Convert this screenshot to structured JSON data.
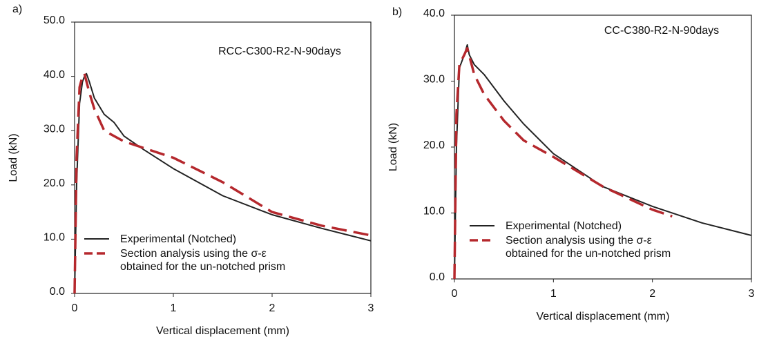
{
  "chart_data": [
    {
      "type": "line",
      "panel_label": "a)",
      "annotation": "RCC-C300-R2-N-90days",
      "xlabel": "Vertical displacement (mm)",
      "ylabel": "Load (kN)",
      "xlim": [
        0,
        3
      ],
      "xticks": [
        0,
        1,
        2,
        3
      ],
      "ylim": [
        0,
        50
      ],
      "yticks": [
        {
          "value": 0,
          "label": "0.0"
        },
        {
          "value": 10,
          "label": "10.0"
        },
        {
          "value": 20,
          "label": "20.0"
        },
        {
          "value": 30,
          "label": "30.0"
        },
        {
          "value": 40,
          "label": "40.0"
        },
        {
          "value": 50,
          "label": "50.0"
        }
      ],
      "series": [
        {
          "name": "Experimental (Notched)",
          "color": "#222222",
          "dash": false,
          "x": [
            0,
            0.02,
            0.05,
            0.08,
            0.1,
            0.12,
            0.15,
            0.2,
            0.3,
            0.4,
            0.5,
            0.7,
            1,
            1.5,
            2,
            2.5,
            3
          ],
          "values": [
            0,
            20,
            35,
            39,
            40,
            40.5,
            39,
            36,
            33,
            31.5,
            29,
            26.5,
            23,
            18,
            14.5,
            12,
            9.7
          ]
        },
        {
          "name": "Section analysis using the σ-ε obtained for the un-notched prism",
          "color": "#b5282d",
          "dash": true,
          "x": [
            0,
            0.02,
            0.05,
            0.08,
            0.1,
            0.15,
            0.2,
            0.3,
            0.5,
            1,
            1.5,
            2,
            2.5,
            3
          ],
          "values": [
            0,
            25,
            38,
            40,
            40.5,
            37,
            34,
            30,
            28,
            25,
            20.5,
            15,
            12.5,
            10.7
          ]
        }
      ]
    },
    {
      "type": "line",
      "panel_label": "b)",
      "annotation": "CC-C380-R2-N-90days",
      "xlabel": "Vertical displacement (mm)",
      "ylabel": "Load (kN)",
      "xlim": [
        0,
        3
      ],
      "xticks": [
        0,
        1,
        2,
        3
      ],
      "ylim": [
        0,
        40
      ],
      "yticks": [
        {
          "value": 0,
          "label": "0.0"
        },
        {
          "value": 10,
          "label": "10.0"
        },
        {
          "value": 20,
          "label": "20.0"
        },
        {
          "value": 30,
          "label": "30.0"
        },
        {
          "value": 40,
          "label": "40.0"
        }
      ],
      "series": [
        {
          "name": "Experimental (Notched)",
          "color": "#222222",
          "dash": false,
          "x": [
            0,
            0.02,
            0.05,
            0.1,
            0.13,
            0.15,
            0.2,
            0.3,
            0.5,
            0.7,
            1,
            1.5,
            2,
            2.5,
            3
          ],
          "values": [
            0,
            20,
            32,
            34,
            35.5,
            34,
            32.5,
            31,
            27,
            23.5,
            19,
            14,
            11,
            8.5,
            6.6
          ]
        },
        {
          "name": "Section analysis using the σ-ε obtained for the un-notched prism",
          "color": "#b5282d",
          "dash": true,
          "x": [
            0,
            0.02,
            0.05,
            0.1,
            0.13,
            0.2,
            0.3,
            0.5,
            0.7,
            1,
            1.5,
            2,
            2.2
          ],
          "values": [
            0,
            25,
            32.5,
            34,
            35,
            31,
            28,
            24,
            21,
            18.5,
            14,
            10.5,
            9.5
          ]
        }
      ]
    }
  ]
}
